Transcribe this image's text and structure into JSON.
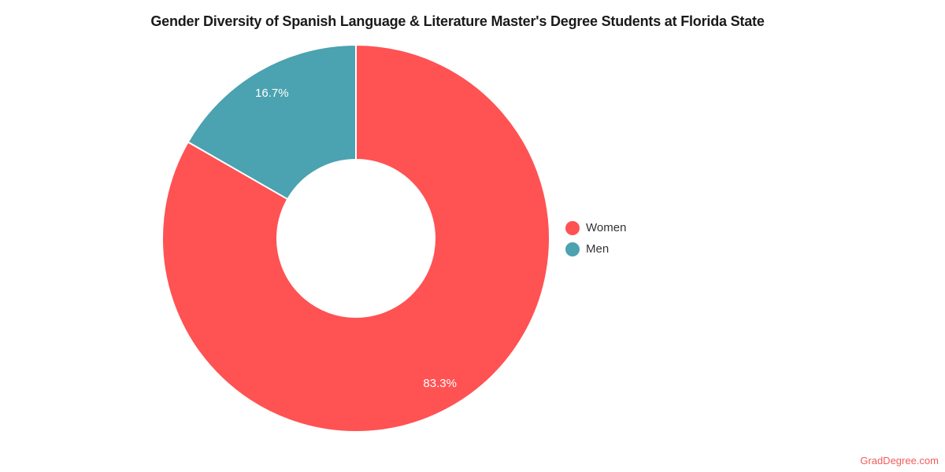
{
  "title": "Gender Diversity of Spanish Language & Literature Master's Degree Students at Florida State",
  "watermark": "GradDegree.com",
  "colors": {
    "women_slice": "#FF5253",
    "men_slice": "#4BA2B0",
    "slice_border": "#FFFFFF",
    "slice_label_text": "#FFFFFF",
    "legend_text": "#333333",
    "title_text": "#1A1A1A",
    "watermark_text": "#F45B5B",
    "background": "#FFFFFF"
  },
  "legend": {
    "position": "right",
    "items": [
      {
        "label": "Women",
        "color": "#FF5253"
      },
      {
        "label": "Men",
        "color": "#4BA2B0"
      }
    ]
  },
  "chart_data": {
    "type": "pie",
    "title": "Gender Diversity of Spanish Language & Literature Master's Degree Students at Florida State",
    "labels": [
      "Women",
      "Men"
    ],
    "values": [
      83.3,
      16.7
    ],
    "value_labels": [
      "83.3%",
      "16.7%"
    ],
    "units": "%",
    "colors": [
      "#FF5253",
      "#4BA2B0"
    ],
    "donut": true,
    "inner_radius_ratio": 0.41,
    "start_angle_deg": 0,
    "direction": "clockwise",
    "legend_position": "right",
    "grid": false
  }
}
